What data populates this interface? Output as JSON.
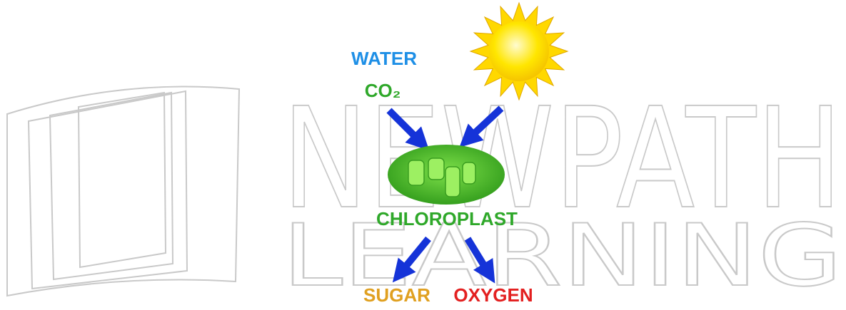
{
  "watermark": {
    "line1": "NEWPATH",
    "line2": "LEARNING"
  },
  "inputs": {
    "water": "WATER",
    "co2": "CO₂"
  },
  "organelle": {
    "label": "CHLOROPLAST"
  },
  "outputs": {
    "sugar": "SUGAR",
    "oxygen": "OXYGEN"
  }
}
